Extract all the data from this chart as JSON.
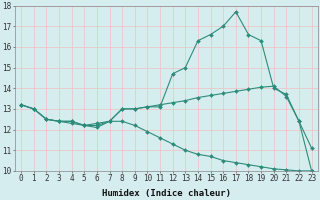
{
  "xlabel": "Humidex (Indice chaleur)",
  "x_values": [
    0,
    1,
    2,
    3,
    4,
    5,
    6,
    7,
    8,
    9,
    10,
    11,
    12,
    13,
    14,
    15,
    16,
    17,
    18,
    19,
    20,
    21,
    22,
    23
  ],
  "line1": [
    13.2,
    13.0,
    12.5,
    12.4,
    12.4,
    12.2,
    12.2,
    12.4,
    13.0,
    13.0,
    13.1,
    13.1,
    14.7,
    15.0,
    16.3,
    16.6,
    17.0,
    17.7,
    16.6,
    16.3,
    14.0,
    13.7,
    12.4,
    11.1
  ],
  "line2": [
    13.2,
    13.0,
    12.5,
    12.4,
    12.4,
    12.2,
    12.3,
    12.4,
    13.0,
    13.0,
    13.1,
    13.2,
    13.3,
    13.4,
    13.55,
    13.65,
    13.75,
    13.85,
    13.95,
    14.05,
    14.1,
    13.6,
    12.4,
    10.0
  ],
  "line3": [
    13.2,
    13.0,
    12.5,
    12.4,
    12.3,
    12.2,
    12.1,
    12.4,
    12.4,
    12.2,
    11.9,
    11.6,
    11.3,
    11.0,
    10.8,
    10.7,
    10.5,
    10.4,
    10.3,
    10.2,
    10.1,
    10.05,
    10.0,
    10.0
  ],
  "bg_color": "#d6edf0",
  "line_color": "#2e8b7a",
  "grid_color": "#b8d4d8",
  "grid_minor_color": "#f0c0c0",
  "ylim": [
    10,
    18
  ],
  "xlim": [
    -0.5,
    23.5
  ],
  "yticks": [
    10,
    11,
    12,
    13,
    14,
    15,
    16,
    17,
    18
  ],
  "tick_fontsize": 5.5,
  "xlabel_fontsize": 6.5
}
